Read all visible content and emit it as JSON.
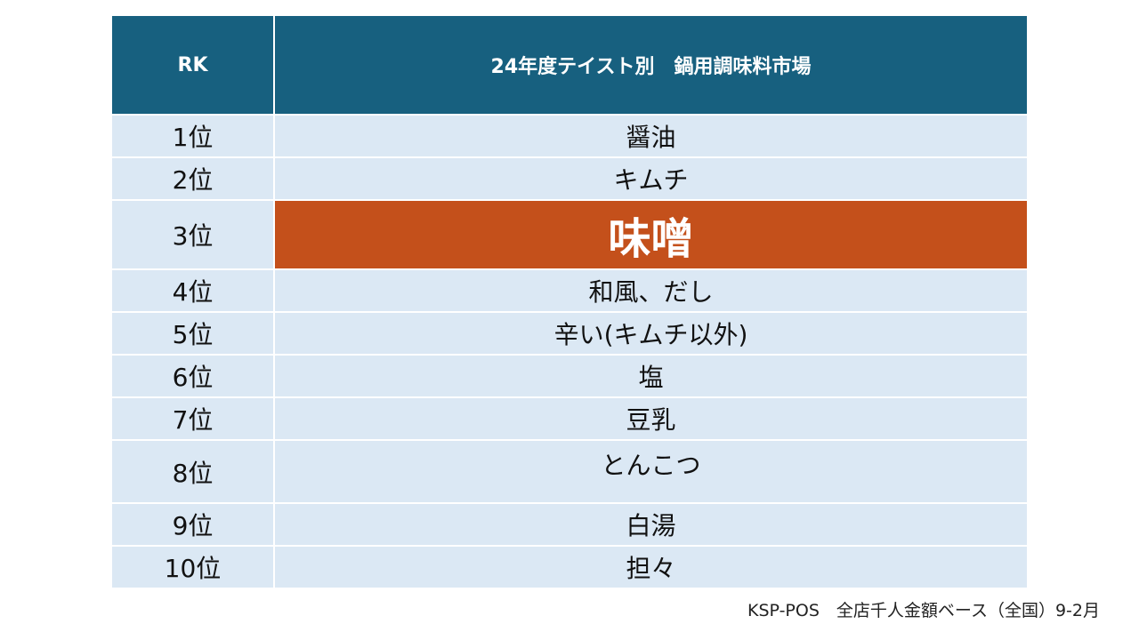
{
  "chart_data": {
    "type": "table",
    "columns": [
      "RK",
      "24年度テイスト別　鍋用調味料市場"
    ],
    "rows": [
      {
        "rank": "1位",
        "taste": "醤油"
      },
      {
        "rank": "2位",
        "taste": "キムチ"
      },
      {
        "rank": "3位",
        "taste": "味噌",
        "highlight": true
      },
      {
        "rank": "4位",
        "taste": "和風、だし"
      },
      {
        "rank": "5位",
        "taste": "辛い(キムチ以外)"
      },
      {
        "rank": "6位",
        "taste": "塩"
      },
      {
        "rank": "7位",
        "taste": "豆乳"
      },
      {
        "rank": "8位",
        "taste": "とんこつ"
      },
      {
        "rank": "9位",
        "taste": "白湯"
      },
      {
        "rank": "10位",
        "taste": "担々"
      }
    ],
    "header_color": "#17607f",
    "row_color": "#dbe8f4",
    "highlight_color": "#c4501b"
  },
  "source_note": "KSP-POS　全店千人金額ベース（全国）9-2月"
}
